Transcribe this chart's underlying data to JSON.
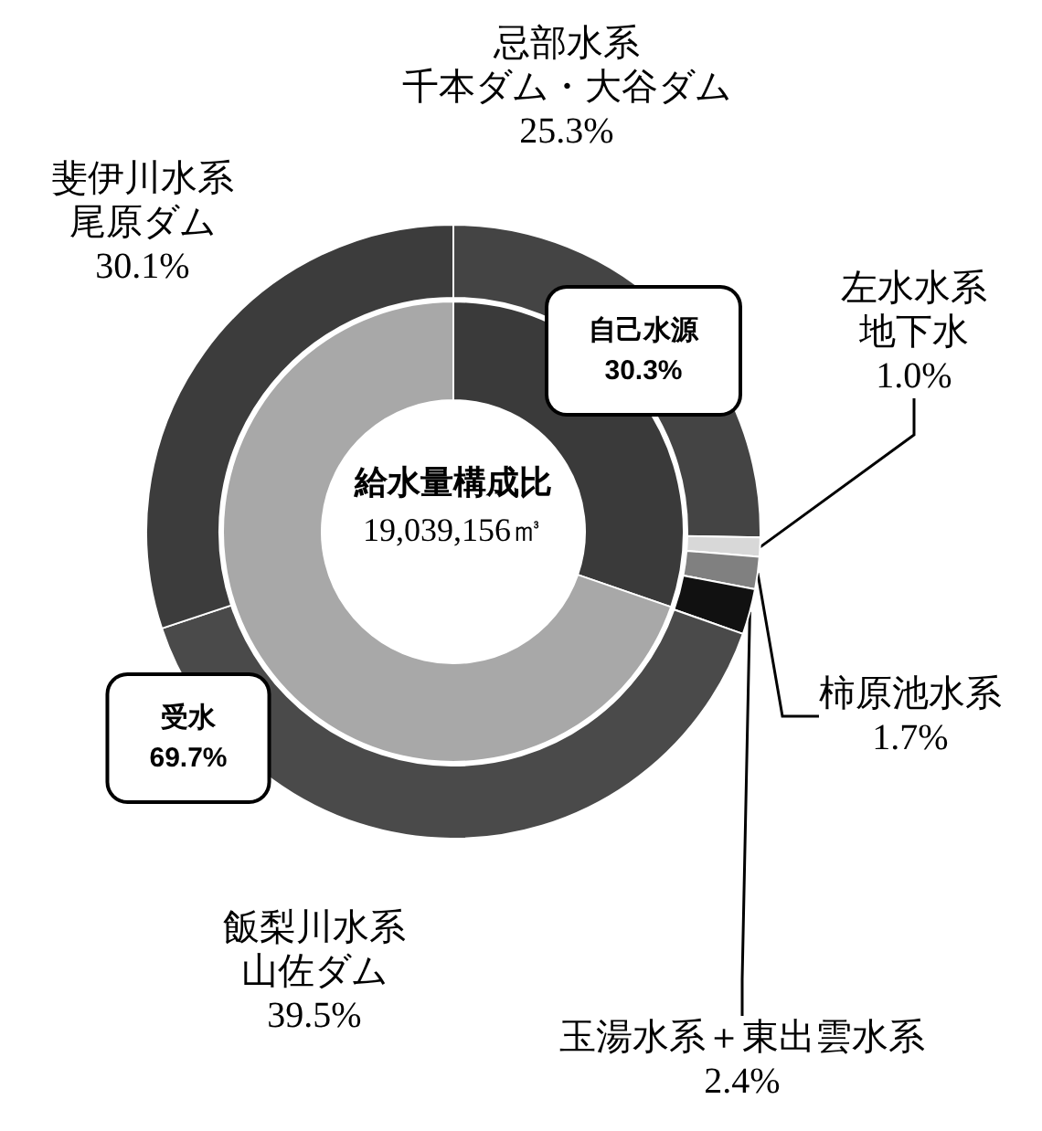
{
  "chart_data": [
    {
      "type": "donut",
      "categories": [
        "自己水源",
        "受水"
      ],
      "values": [
        30.3,
        69.7
      ],
      "colors": [
        "#3a3a3a",
        "#a8a8a8"
      ],
      "value_labels": [
        "30.3%",
        "69.7%"
      ]
    },
    {
      "type": "donut",
      "title": "給水量構成比",
      "annotations": [
        "19,039,156㎥"
      ],
      "categories": [
        "忌部水系千本ダム・大谷ダム",
        "左水水系地下水",
        "柿原池水系",
        "玉湯水系＋東出雲水系",
        "飯梨川水系山佐ダム",
        "斐伊川水系尾原ダム"
      ],
      "values": [
        25.3,
        1.0,
        1.7,
        2.4,
        39.5,
        30.1
      ],
      "colors": [
        "#444444",
        "#d8d8d8",
        "#808080",
        "#111111",
        "#4a4a4a",
        "#3c3c3c"
      ],
      "value_labels": [
        "25.3%",
        "1.0%",
        "1.7%",
        "2.4%",
        "39.5%",
        "30.1%"
      ]
    }
  ]
}
